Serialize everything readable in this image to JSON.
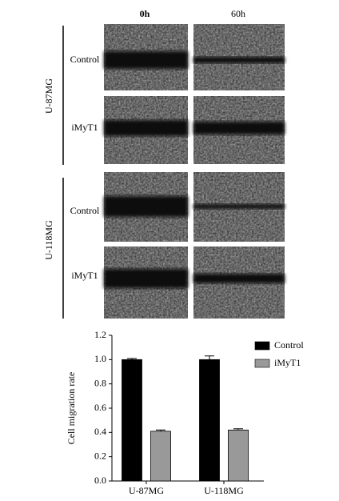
{
  "panels": {
    "columns": [
      "0h",
      "60h"
    ],
    "groups": [
      {
        "label": "U-87MG",
        "rows": [
          "Control",
          "iMyT1"
        ]
      },
      {
        "label": "U-118MG",
        "rows": [
          "Control",
          "iMyT1"
        ]
      }
    ]
  },
  "chart_data": {
    "type": "bar",
    "y_label": "Cell migration rate",
    "categories": [
      "U-87MG",
      "U-118MG"
    ],
    "series": [
      {
        "name": "Control",
        "color": "#000000",
        "values": [
          1.0,
          1.0
        ],
        "errors": [
          0.01,
          0.03
        ]
      },
      {
        "name": "iMyT1",
        "color": "#999999",
        "values": [
          0.41,
          0.42
        ],
        "errors": [
          0.01,
          0.01
        ]
      }
    ],
    "ylim": [
      0,
      1.2
    ],
    "yticks": [
      {
        "value": 0,
        "label": "0.0"
      },
      0.2,
      0.4,
      0.6,
      0.8,
      {
        "value": 1,
        "label": "1.0"
      },
      1.2
    ],
    "legend": "top-right"
  }
}
